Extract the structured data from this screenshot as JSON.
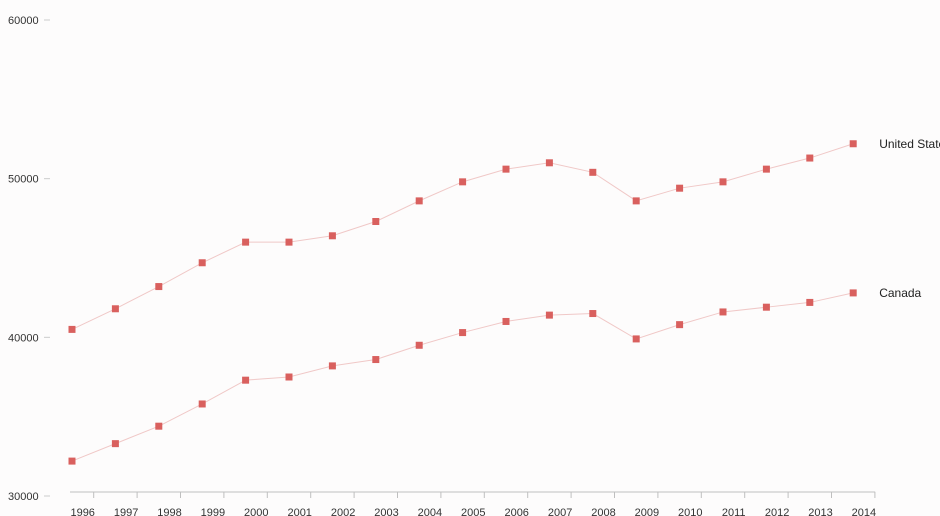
{
  "chart_data": {
    "type": "line",
    "x": [
      "1996",
      "1997",
      "1998",
      "1999",
      "2000",
      "2001",
      "2002",
      "2003",
      "2004",
      "2005",
      "2006",
      "2007",
      "2008",
      "2009",
      "2010",
      "2011",
      "2012",
      "2013",
      "2014"
    ],
    "series": [
      {
        "name": "United States",
        "values": [
          40500,
          41800,
          43200,
          44700,
          46000,
          46000,
          46400,
          47300,
          48600,
          49800,
          50600,
          51000,
          50400,
          48600,
          49400,
          49800,
          50600,
          51300,
          52200
        ],
        "color": "#d9605e"
      },
      {
        "name": "Canada",
        "values": [
          32200,
          33300,
          34400,
          35800,
          37300,
          37500,
          38200,
          38600,
          39500,
          40300,
          41000,
          41400,
          41500,
          39900,
          40800,
          41600,
          41900,
          42200,
          42800
        ],
        "color": "#d9605e"
      }
    ],
    "yticks": [
      30000,
      40000,
      50000,
      60000
    ],
    "ylim": [
      30000,
      60000
    ],
    "title": "",
    "xlabel": "",
    "ylabel": "",
    "legend": "inline-right",
    "grid": false
  }
}
